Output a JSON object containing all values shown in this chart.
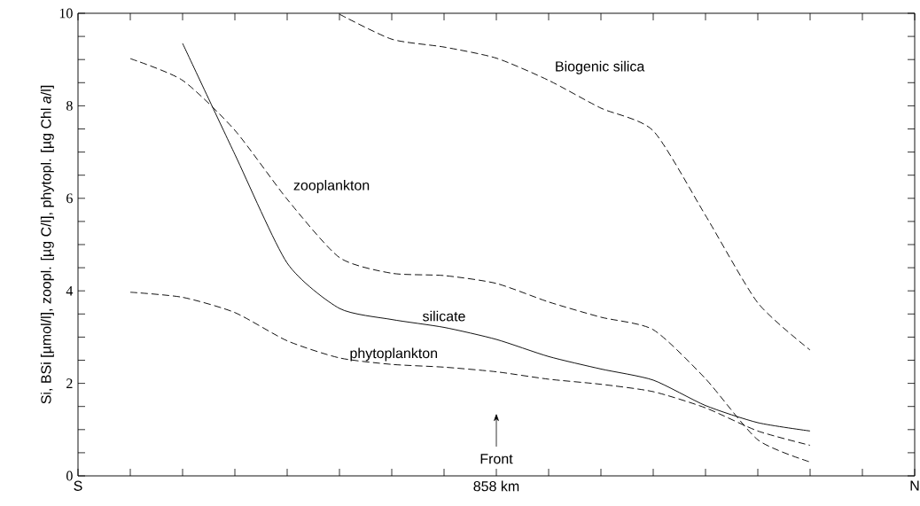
{
  "chart_data": {
    "type": "line",
    "ylabel": "Si, BSi [µmol/l], zoopl. [µg C/l], phytopl. [µg Chl *a*/l]",
    "categories": [
      "S",
      null,
      null,
      null,
      null,
      null,
      null,
      null,
      "858 km",
      null,
      null,
      null,
      null,
      null,
      null,
      null,
      "N"
    ],
    "ylim": [
      0,
      10
    ],
    "yticks": [
      0,
      {
        "value": 0.5,
        "label": null
      },
      {
        "value": 1,
        "label": null
      },
      {
        "value": 1.5,
        "label": null
      },
      2,
      {
        "value": 2.5,
        "label": null
      },
      {
        "value": 3,
        "label": null
      },
      {
        "value": 3.5,
        "label": null
      },
      4,
      {
        "value": 4.5,
        "label": null
      },
      {
        "value": 5,
        "label": null
      },
      {
        "value": 5.5,
        "label": null
      },
      6,
      {
        "value": 6.5,
        "label": null
      },
      {
        "value": 7,
        "label": null
      },
      {
        "value": 7.5,
        "label": null
      },
      8,
      {
        "value": 8.5,
        "label": null
      },
      {
        "value": 9,
        "label": null
      },
      {
        "value": 9.5,
        "label": null
      },
      10
    ],
    "annotations": [
      "Front"
    ],
    "series": [
      {
        "name": "silicate",
        "color": "#000000",
        "line_style": "solid",
        "values": [
          null,
          null,
          9.35,
          6.95,
          4.6,
          3.62,
          3.38,
          3.21,
          2.95,
          2.58,
          2.31,
          2.07,
          1.52,
          1.15,
          0.97,
          null,
          null
        ]
      },
      {
        "name": "zooplankton",
        "color": "#000000",
        "line_style": "dashed",
        "values": [
          null,
          9.02,
          8.55,
          7.47,
          5.98,
          4.72,
          4.38,
          4.33,
          4.16,
          3.76,
          3.43,
          3.16,
          2.1,
          0.78,
          0.3,
          null,
          null
        ]
      },
      {
        "name": "phytoplankton",
        "color": "#000000",
        "line_style": "dashed",
        "values": [
          null,
          3.97,
          3.86,
          3.53,
          2.92,
          2.55,
          2.41,
          2.35,
          2.25,
          2.09,
          1.98,
          1.82,
          1.47,
          0.97,
          0.66,
          null,
          null
        ]
      },
      {
        "name": "Biogenic silica",
        "color": "#000000",
        "line_style": "dashed",
        "values": [
          null,
          null,
          null,
          null,
          null,
          9.98,
          9.44,
          9.27,
          9.03,
          8.55,
          7.95,
          7.46,
          5.63,
          3.74,
          2.72,
          null,
          null
        ]
      }
    ]
  }
}
